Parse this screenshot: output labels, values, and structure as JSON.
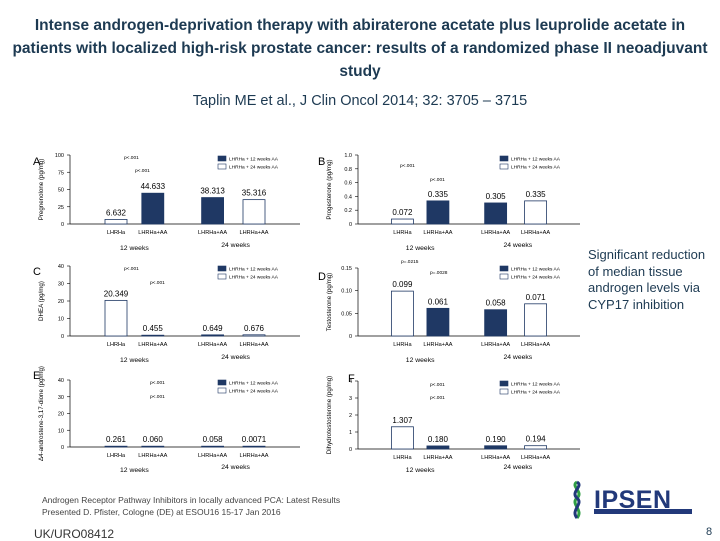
{
  "slide": {
    "title": "Intense androgen-deprivation therapy with abiraterone acetate plus leuprolide acetate in patients with localized high-risk prostate cancer: results of a randomized phase II neoadjuvant study",
    "reference": "Taplin ME et al., J Clin Oncol 2014; 32: 3705 – 3715",
    "side_note": "Significant reduction of median tissue androgen levels via CYP17 inhibition",
    "footer_line1": "Androgen Receptor Pathway Inhibitors in locally advanced PCA: Latest Results",
    "footer_line2": "Presented D. Pfister, Cologne (DE) at ESOU16 15-17 Jan 2016",
    "slide_code": "UK/URO08412",
    "page_number": "8",
    "logo_text": "IPSEN"
  },
  "colors": {
    "white": "#ffffff",
    "navy": "#1f3864",
    "text": "#1d3a52"
  },
  "chart_data": [
    {
      "panel": "A",
      "type": "bar",
      "ylabel": "Pregnenolone (pg/mg)",
      "ylim": [
        0,
        100
      ],
      "yticks": [
        0,
        25,
        50,
        75,
        100
      ],
      "categories": [
        "LHRHa",
        "LHRHa+AA",
        "LHRHa+AA",
        "LHRHa+AA"
      ],
      "values": [
        6.632,
        44.633,
        38.313,
        35.316
      ],
      "value_labels": [
        "6.632",
        "44.633",
        "38.313",
        "35.316"
      ],
      "bar_colors": [
        "white",
        "navy",
        "navy",
        "white"
      ],
      "groups": [
        "12 weeks",
        "24 weeks"
      ],
      "legend": [
        "LHRHa + 12 weeks AA",
        "LHRHa + 24 weeks AA"
      ],
      "pvalues": [
        "p<.001",
        "p<.001"
      ]
    },
    {
      "panel": "B",
      "type": "bar",
      "ylabel": "Progesterone (pg/mg)",
      "ylim": [
        0,
        1.0
      ],
      "yticks": [
        0,
        0.2,
        0.4,
        0.6,
        0.8,
        1.0
      ],
      "ytick_labels": [
        "0",
        "0.2",
        "0.4",
        "0.6",
        "0.8",
        "1.0"
      ],
      "categories": [
        "LHRHa",
        "LHRHa+AA",
        "LHRHa+AA",
        "LHRHa+AA"
      ],
      "values": [
        0.072,
        0.335,
        0.305,
        0.335
      ],
      "value_labels": [
        "0.072",
        "0.335",
        "0.305",
        "0.335"
      ],
      "bar_colors": [
        "white",
        "navy",
        "navy",
        "white"
      ],
      "groups": [
        "12 weeks",
        "24 weeks"
      ],
      "legend": [
        "LHRHa + 12 weeks AA",
        "LHRHa + 24 weeks AA"
      ],
      "pvalues": [
        "p<.001",
        "p<.001"
      ]
    },
    {
      "panel": "C",
      "type": "bar",
      "ylabel": "DHEA (pg/mg)",
      "ylim": [
        0,
        40
      ],
      "yticks": [
        0,
        10,
        20,
        30,
        40
      ],
      "categories": [
        "LHRHa",
        "LHRHa+AA",
        "LHRHa+AA",
        "LHRHa+AA"
      ],
      "values": [
        20.349,
        0.455,
        0.649,
        0.676
      ],
      "value_labels": [
        "20.349",
        "0.455",
        "0.649",
        "0.676"
      ],
      "bar_colors": [
        "white",
        "navy",
        "navy",
        "white"
      ],
      "groups": [
        "12 weeks",
        "24 weeks"
      ],
      "legend": [
        "LHRHa + 12 weeks AA",
        "LHRHa + 24 weeks AA"
      ],
      "pvalues": [
        "p<.001",
        "p<.001"
      ]
    },
    {
      "panel": "D",
      "type": "bar",
      "ylabel": "Testosterone (pg/mg)",
      "ylim": [
        0,
        0.15
      ],
      "yticks": [
        0,
        0.05,
        0.1,
        0.15
      ],
      "ytick_labels": [
        "0",
        "0.05",
        "0.10",
        "0.15"
      ],
      "categories": [
        "LHRHa",
        "LHRHa+AA",
        "LHRHa+AA",
        "LHRHa+AA"
      ],
      "values": [
        0.099,
        0.061,
        0.058,
        0.071
      ],
      "value_labels": [
        "0.099",
        "0.061",
        "0.058",
        "0.071"
      ],
      "bar_colors": [
        "white",
        "navy",
        "navy",
        "white"
      ],
      "groups": [
        "12 weeks",
        "24 weeks"
      ],
      "legend": [
        "LHRHa + 12 weeks AA",
        "LHRHa + 24 weeks AA"
      ],
      "pvalues": [
        "p=.0215",
        "p=.0028"
      ]
    },
    {
      "panel": "E",
      "type": "bar",
      "ylabel": "Δ4-androstene-3,17-dione (pg/mg)",
      "ylim": [
        0,
        40
      ],
      "yticks": [
        0,
        10,
        20,
        30,
        40
      ],
      "categories": [
        "LHRHa",
        "LHRHa+AA",
        "LHRHa+AA",
        "LHRHa+AA"
      ],
      "values": [
        0.261,
        0.06,
        0.058,
        0.0071
      ],
      "value_labels": [
        "0.261",
        "0.060",
        "0.058",
        "0.0071"
      ],
      "bar_colors": [
        "white",
        "navy",
        "navy",
        "white"
      ],
      "groups": [
        "12 weeks",
        "24 weeks"
      ],
      "legend": [
        "LHRHa + 12 weeks AA",
        "LHRHa + 24 weeks AA"
      ],
      "pvalues": [
        "p<.001",
        "p<.001"
      ]
    },
    {
      "panel": "F",
      "type": "bar",
      "ylabel": "Dihydrotestosterone (pg/mg)",
      "ylim": [
        0,
        4
      ],
      "yticks": [
        0,
        1,
        2,
        3,
        4
      ],
      "categories": [
        "LHRHa",
        "LHRHa+AA",
        "LHRHa+AA",
        "LHRHa+AA"
      ],
      "values": [
        1.307,
        0.18,
        0.19,
        0.194
      ],
      "value_labels": [
        "1.307",
        "0.180",
        "0.190",
        "0.194"
      ],
      "bar_colors": [
        "white",
        "navy",
        "navy",
        "white"
      ],
      "groups": [
        "12 weeks",
        "24 weeks"
      ],
      "legend": [
        "LHRHa + 12 weeks AA",
        "LHRHa + 24 weeks AA"
      ],
      "pvalues": [
        "p<.001",
        "p<.001"
      ]
    }
  ]
}
